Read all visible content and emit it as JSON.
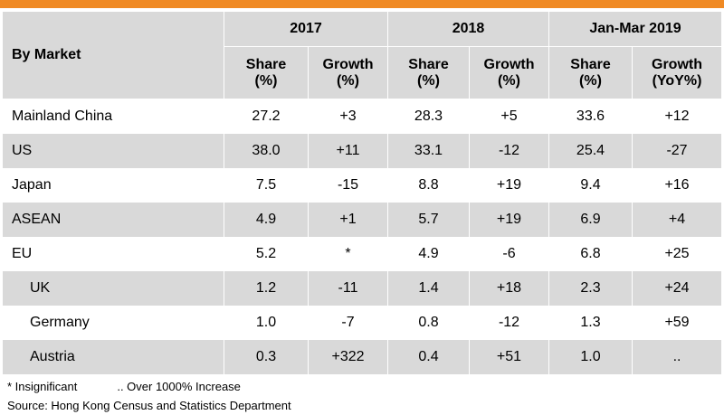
{
  "header": {
    "market_label": "By Market",
    "years": [
      "2017",
      "2018",
      "Jan-Mar 2019"
    ],
    "subheaders": [
      {
        "line1": "Share",
        "line2": "(%)"
      },
      {
        "line1": "Growth",
        "line2": "(%)"
      },
      {
        "line1": "Share",
        "line2": "(%)"
      },
      {
        "line1": "Growth",
        "line2": "(%)"
      },
      {
        "line1": "Share",
        "line2": "(%)"
      },
      {
        "line1": "Growth",
        "line2": "(YoY%)"
      }
    ]
  },
  "rows": [
    {
      "market": "Mainland China",
      "values": [
        "27.2",
        "+3",
        "28.3",
        "+5",
        "33.6",
        "+12"
      ]
    },
    {
      "market": "US",
      "values": [
        "38.0",
        "+11",
        "33.1",
        "-12",
        "25.4",
        "-27"
      ]
    },
    {
      "market": "Japan",
      "values": [
        "7.5",
        "-15",
        "8.8",
        "+19",
        "9.4",
        "+16"
      ]
    },
    {
      "market": "ASEAN",
      "values": [
        "4.9",
        "+1",
        "5.7",
        "+19",
        "6.9",
        "+4"
      ]
    },
    {
      "market": "EU",
      "values": [
        "5.2",
        "*",
        "4.9",
        "-6",
        "6.8",
        "+25"
      ]
    },
    {
      "market": "UK",
      "values": [
        "1.2",
        "-11",
        "1.4",
        "+18",
        "2.3",
        "+24"
      ]
    },
    {
      "market": "Germany",
      "values": [
        "1.0",
        "-7",
        "0.8",
        "-12",
        "1.3",
        "+59"
      ]
    },
    {
      "market": "Austria",
      "values": [
        "0.3",
        "+322",
        "0.4",
        "+51",
        "1.0",
        ".."
      ]
    }
  ],
  "notes": {
    "insignificant": "* Insignificant",
    "over_increase": ".. Over 1000% Increase",
    "source": "Source: Hong Kong Census and Statistics Department"
  },
  "colors": {
    "accent_bar": "#f08a24",
    "shade": "#d9d9d9"
  }
}
